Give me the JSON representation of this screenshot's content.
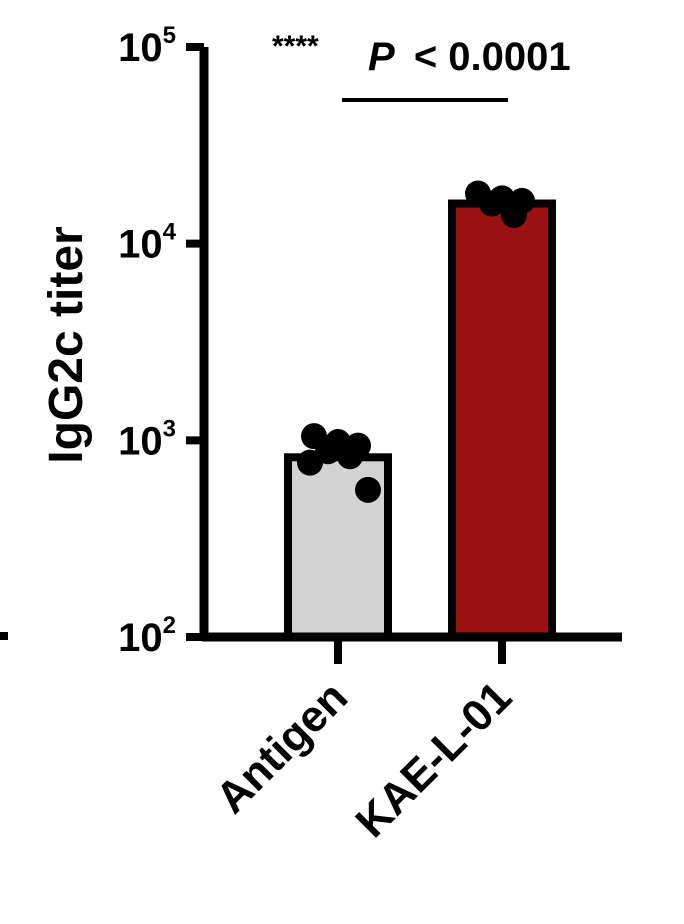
{
  "chart_data": {
    "type": "bar",
    "ylabel": "IgG2c titer",
    "yscale": "log",
    "ylim": [
      100,
      100000
    ],
    "yticks": [
      {
        "value": 100,
        "base": "10",
        "exp": "2"
      },
      {
        "value": 1000,
        "base": "10",
        "exp": "3"
      },
      {
        "value": 10000,
        "base": "10",
        "exp": "4"
      },
      {
        "value": 100000,
        "base": "10",
        "exp": "5"
      }
    ],
    "categories": [
      "Antigen",
      "KAE-L-01"
    ],
    "values": [
      820,
      16000
    ],
    "bar_colors": [
      "#d3d3d3",
      "#9b1010"
    ],
    "points": [
      [
        1050,
        980,
        940,
        880,
        830,
        770,
        560
      ],
      [
        18000,
        17000,
        16500,
        16000,
        14000
      ]
    ],
    "annotation": {
      "stars": "****",
      "p_label": "P",
      "p_text": "< 0.0001",
      "between": [
        "Antigen",
        "KAE-L-01"
      ]
    }
  }
}
